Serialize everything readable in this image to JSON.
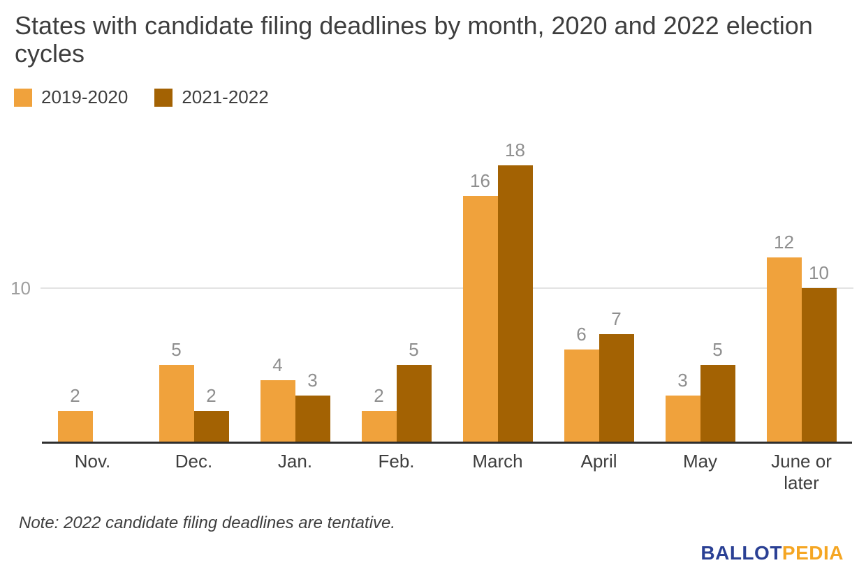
{
  "title": "States with candidate filing deadlines by month, 2020 and 2022 election cycles",
  "note": "Note: 2022 candidate filing deadlines are tentative.",
  "logo": {
    "ballot": "BALLOT",
    "pedia": "PEDIA",
    "ballot_color": "#2a4094",
    "pedia_color": "#f5a623"
  },
  "colors": {
    "series_2019_2020": "#f0a23c",
    "series_2021_2022": "#a36203",
    "gridline": "#e3e3e3",
    "axis_line": "#2e2e2e",
    "value_label": "#8e8e8e",
    "tick_label": "#9e9e9e",
    "text": "#3e3e3e"
  },
  "chart_data": {
    "type": "bar",
    "title": "States with candidate filing deadlines by month, 2020 and 2022 election cycles",
    "categories": [
      "Nov.",
      "Dec.",
      "Jan.",
      "Feb.",
      "March",
      "April",
      "May",
      "June or later"
    ],
    "series": [
      {
        "name": "2019-2020",
        "color": "#f0a23c",
        "values": [
          2,
          5,
          4,
          2,
          16,
          6,
          3,
          12
        ]
      },
      {
        "name": "2021-2022",
        "color": "#a36203",
        "values": [
          0,
          2,
          3,
          5,
          18,
          7,
          5,
          10
        ]
      }
    ],
    "xlabel": "",
    "ylabel": "",
    "y_ticks": [
      10
    ],
    "ylim": [
      0,
      20
    ],
    "grid": true,
    "legend_position": "top-left",
    "value_labels": true,
    "zero_value_bars_hidden": true
  }
}
